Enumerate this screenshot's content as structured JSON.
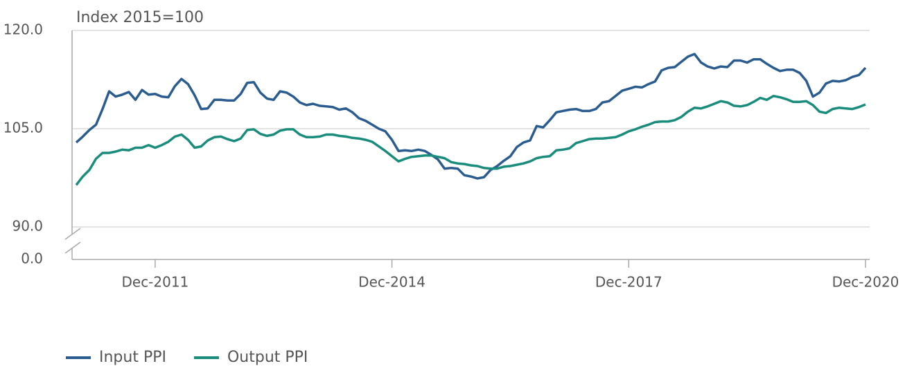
{
  "chart_data": {
    "type": "line",
    "y_axis_label": "Index 2015=100",
    "categories": [
      null,
      null,
      null,
      null,
      null,
      null,
      null,
      null,
      null,
      null,
      null,
      null,
      "Dec-2011",
      null,
      null,
      null,
      null,
      null,
      null,
      null,
      null,
      null,
      null,
      null,
      null,
      null,
      null,
      null,
      null,
      null,
      null,
      null,
      null,
      null,
      null,
      null,
      null,
      null,
      null,
      null,
      null,
      null,
      null,
      null,
      null,
      null,
      null,
      null,
      "Dec-2014",
      null,
      null,
      null,
      null,
      null,
      null,
      null,
      null,
      null,
      null,
      null,
      null,
      null,
      null,
      null,
      null,
      null,
      null,
      null,
      null,
      null,
      null,
      null,
      null,
      null,
      null,
      null,
      null,
      null,
      null,
      null,
      null,
      null,
      null,
      null,
      "Dec-2017",
      null,
      null,
      null,
      null,
      null,
      null,
      null,
      null,
      null,
      null,
      null,
      null,
      null,
      null,
      null,
      null,
      null,
      null,
      null,
      null,
      null,
      null,
      null,
      null,
      null,
      null,
      null,
      null,
      null,
      null,
      null,
      null,
      null,
      null,
      null,
      "Dec-2020"
    ],
    "series": [
      {
        "name": "Input PPI",
        "color": "#2b5c8f",
        "values": [
          102.9,
          103.8,
          104.8,
          105.6,
          108.0,
          110.7,
          109.9,
          110.2,
          110.6,
          109.4,
          110.9,
          110.2,
          110.3,
          109.9,
          109.8,
          111.5,
          112.6,
          111.8,
          110.1,
          108.0,
          108.1,
          109.4,
          109.4,
          109.3,
          109.3,
          110.3,
          112.0,
          112.1,
          110.5,
          109.6,
          109.4,
          110.7,
          110.5,
          109.9,
          109.0,
          108.6,
          108.8,
          108.5,
          108.4,
          108.3,
          107.9,
          108.1,
          107.5,
          106.6,
          106.2,
          105.6,
          105.0,
          104.6,
          103.3,
          101.6,
          101.7,
          101.6,
          101.8,
          101.6,
          101.0,
          100.3,
          98.9,
          99.0,
          98.9,
          97.9,
          97.7,
          97.4,
          97.6,
          98.7,
          99.3,
          100.1,
          100.8,
          102.2,
          102.9,
          103.2,
          105.4,
          105.2,
          106.3,
          107.5,
          107.7,
          107.9,
          108.0,
          107.7,
          107.7,
          108.0,
          109.0,
          109.2,
          110.0,
          110.8,
          111.1,
          111.4,
          111.3,
          111.8,
          112.2,
          113.9,
          114.3,
          114.4,
          115.2,
          116.0,
          116.4,
          115.1,
          114.5,
          114.2,
          114.5,
          114.4,
          115.4,
          115.4,
          115.1,
          115.6,
          115.6,
          114.9,
          114.3,
          113.8,
          114.0,
          114.0,
          113.5,
          112.3,
          109.9,
          110.5,
          111.9,
          112.3,
          112.2,
          112.4,
          112.9,
          113.2,
          114.3
        ]
      },
      {
        "name": "Output PPI",
        "color": "#1a8c7c",
        "values": [
          96.4,
          97.7,
          98.7,
          100.4,
          101.3,
          101.3,
          101.5,
          101.8,
          101.7,
          102.1,
          102.1,
          102.5,
          102.1,
          102.5,
          103.0,
          103.8,
          104.1,
          103.3,
          102.1,
          102.3,
          103.2,
          103.7,
          103.8,
          103.4,
          103.1,
          103.5,
          104.8,
          104.9,
          104.2,
          103.9,
          104.1,
          104.7,
          104.9,
          104.9,
          104.1,
          103.7,
          103.7,
          103.8,
          104.1,
          104.1,
          103.9,
          103.8,
          103.6,
          103.5,
          103.3,
          103.0,
          102.3,
          101.6,
          100.8,
          100.0,
          100.4,
          100.7,
          100.8,
          100.9,
          100.9,
          100.7,
          100.5,
          99.9,
          99.7,
          99.6,
          99.4,
          99.3,
          99.0,
          98.9,
          98.9,
          99.2,
          99.3,
          99.5,
          99.7,
          100.0,
          100.5,
          100.7,
          100.8,
          101.7,
          101.8,
          102.0,
          102.8,
          103.1,
          103.4,
          103.5,
          103.5,
          103.6,
          103.7,
          104.1,
          104.6,
          104.9,
          105.3,
          105.6,
          106.0,
          106.1,
          106.1,
          106.3,
          106.8,
          107.6,
          108.2,
          108.1,
          108.4,
          108.8,
          109.2,
          109.0,
          108.5,
          108.4,
          108.6,
          109.1,
          109.7,
          109.4,
          110.0,
          109.8,
          109.5,
          109.1,
          109.1,
          109.2,
          108.6,
          107.6,
          107.4,
          108.0,
          108.2,
          108.1,
          108.0,
          108.3,
          108.7
        ]
      }
    ],
    "ylim": [
      0,
      120
    ],
    "axis_break": [
      0,
      90
    ],
    "yticks": [
      {
        "value": 0,
        "label": "0.0"
      },
      {
        "value": 90,
        "label": "90.0"
      },
      {
        "value": 105,
        "label": "105.0"
      },
      {
        "value": 120,
        "label": "120.0"
      }
    ],
    "grid": true,
    "legend": "bottom-left"
  }
}
